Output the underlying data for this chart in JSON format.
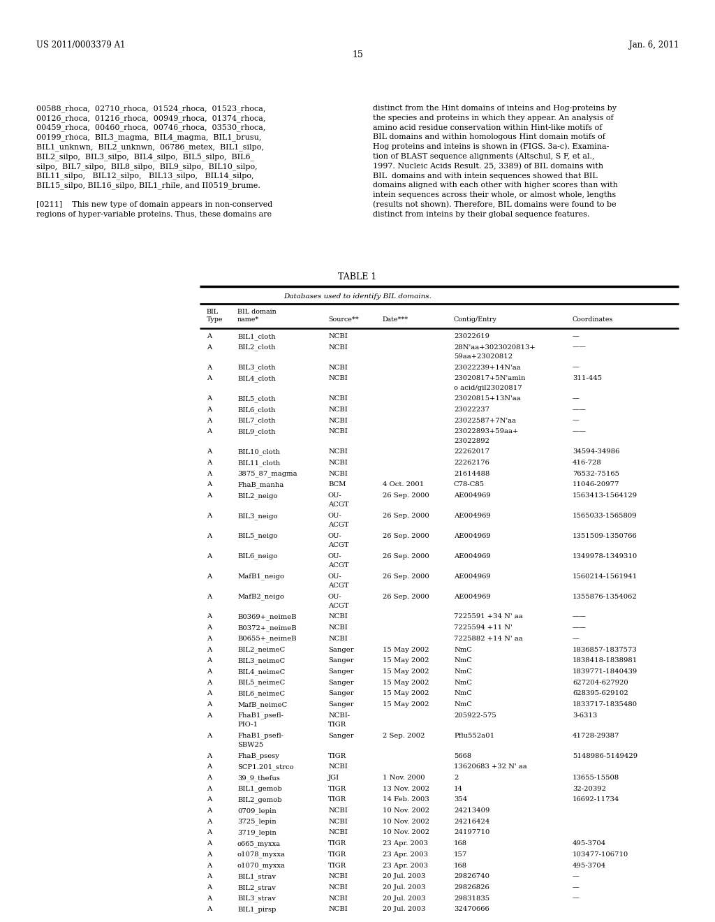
{
  "page_number": "15",
  "patent_number": "US 2011/0003379 A1",
  "patent_date": "Jan. 6, 2011",
  "table_title": "TABLE 1",
  "table_subtitle": "Databases used to identify BIL domains.",
  "bg_color": "#ffffff",
  "text_color": "#000000",
  "left_lines": [
    "00588_rhoca,  02710_rhoca,  01524_rhoca,  01523_rhoca,",
    "00126_rhoca,  01216_rhoca,  00949_rhoca,  01374_rhoca,",
    "00459_rhoca,  00460_rhoca,  00746_rhoca,  03530_rhoca,",
    "00199_rhoca,  BIL3_magma,  BIL4_magma,  BIL1_brusu,",
    "BIL1_unknwn,  BIL2_unknwn,  06786_metex,  BIL1_silpo,",
    "BIL2_silpo,  BIL3_silpo,  BIL4_silpo,  BIL5_silpo,  BIL6_",
    "silpo,  BIL7_silpo,  BIL8_silpo,  BIL9_silpo,  BIL10_silpo,",
    "BIL11_silpo,   BIL12_silpo,   BIL13_silpo,   BIL14_silpo,",
    "BIL15_silpo, BIL16_silpo, BIL1_rhile, and II0519_brume.",
    "",
    "[0211]    This new type of domain appears in non-conserved",
    "regions of hyper-variable proteins. Thus, these domains are"
  ],
  "right_lines": [
    "distinct from the Hint domains of inteins and Hog-proteins by",
    "the species and proteins in which they appear. An analysis of",
    "amino acid residue conservation within Hint-like motifs of",
    "BIL domains and within homologous Hint domain motifs of",
    "Hog proteins and inteins is shown in (FIGS. 3a-c). Examina-",
    "tion of BLAST sequence alignments (Altschul, S F, et al.,",
    "1997. Nucleic Acids Result. 25, 3389) of BIL domains with",
    "BIL  domains and with intein sequences showed that BIL",
    "domains aligned with each other with higher scores than with",
    "intein sequences across their whole, or almost whole, lengths",
    "(results not shown). Therefore, BIL domains were found to be",
    "distinct from inteins by their global sequence features."
  ],
  "rows": [
    {
      "type": "A",
      "name": "BIL1_cloth",
      "source": "NCBI",
      "date": "",
      "contig": "23022619",
      "coords": "—",
      "name_lines": 1,
      "source_lines": 1,
      "contig_lines": 1
    },
    {
      "type": "A",
      "name": "BIL2_cloth",
      "source": "NCBI",
      "date": "",
      "contig": "28N'aa+3023020813+",
      "contig2": "59aa+23020812",
      "coords": "——",
      "name_lines": 1,
      "source_lines": 1,
      "contig_lines": 2
    },
    {
      "type": "A",
      "name": "BIL3_cloth",
      "source": "NCBI",
      "date": "",
      "contig": "23022239+14N'aa",
      "coords": "—",
      "name_lines": 1,
      "source_lines": 1,
      "contig_lines": 1
    },
    {
      "type": "A",
      "name": "BIL4_cloth",
      "source": "NCBI",
      "date": "",
      "contig": "23020817+5N'amin",
      "contig2": "o acid/gil23020817",
      "coords": "311-445",
      "name_lines": 1,
      "source_lines": 1,
      "contig_lines": 2
    },
    {
      "type": "A",
      "name": "BIL5_cloth",
      "source": "NCBI",
      "date": "",
      "contig": "23020815+13N'aa",
      "coords": "—",
      "name_lines": 1,
      "source_lines": 1,
      "contig_lines": 1
    },
    {
      "type": "A",
      "name": "BIL6_cloth",
      "source": "NCBI",
      "date": "",
      "contig": "23022237",
      "coords": "——",
      "name_lines": 1,
      "source_lines": 1,
      "contig_lines": 1
    },
    {
      "type": "A",
      "name": "BIL7_cloth",
      "source": "NCBI",
      "date": "",
      "contig": "23022587+7N'aa",
      "coords": "—",
      "name_lines": 1,
      "source_lines": 1,
      "contig_lines": 1
    },
    {
      "type": "A",
      "name": "BIL9_cloth",
      "source": "NCBI",
      "date": "",
      "contig": "23022893+59aa+",
      "contig2": "23022892",
      "coords": "——",
      "name_lines": 1,
      "source_lines": 1,
      "contig_lines": 2
    },
    {
      "type": "A",
      "name": "BIL10_cloth",
      "source": "NCBI",
      "date": "",
      "contig": "22262017",
      "coords": "34594-34986",
      "name_lines": 1,
      "source_lines": 1,
      "contig_lines": 1
    },
    {
      "type": "A",
      "name": "BIL11_cloth",
      "source": "NCBI",
      "date": "",
      "contig": "22262176",
      "coords": "416-728",
      "name_lines": 1,
      "source_lines": 1,
      "contig_lines": 1
    },
    {
      "type": "A",
      "name": "3875_87_magma",
      "source": "NCBI",
      "date": "",
      "contig": "21614488",
      "coords": "76532-75165",
      "name_lines": 1,
      "source_lines": 1,
      "contig_lines": 1
    },
    {
      "type": "A",
      "name": "FhaB_manha",
      "source": "BCM",
      "date": "4 Oct. 2001",
      "contig": "C78-C85",
      "coords": "11046-20977",
      "name_lines": 1,
      "source_lines": 1,
      "contig_lines": 1
    },
    {
      "type": "A",
      "name": "BIL2_neigo",
      "source": "OU-",
      "source2": "ACGT",
      "date": "26 Sep. 2000",
      "contig": "AE004969",
      "coords": "1563413-1564129",
      "name_lines": 1,
      "source_lines": 2,
      "contig_lines": 1
    },
    {
      "type": "A",
      "name": "BIL3_neigo",
      "source": "OU-",
      "source2": "ACGT",
      "date": "26 Sep. 2000",
      "contig": "AE004969",
      "coords": "1565033-1565809",
      "name_lines": 1,
      "source_lines": 2,
      "contig_lines": 1
    },
    {
      "type": "A",
      "name": "BIL5_neigo",
      "source": "OU-",
      "source2": "ACGT",
      "date": "26 Sep. 2000",
      "contig": "AE004969",
      "coords": "1351509-1350766",
      "name_lines": 1,
      "source_lines": 2,
      "contig_lines": 1
    },
    {
      "type": "A",
      "name": "BIL6_neigo",
      "source": "OU-",
      "source2": "ACGT",
      "date": "26 Sep. 2000",
      "contig": "AE004969",
      "coords": "1349978-1349310",
      "name_lines": 1,
      "source_lines": 2,
      "contig_lines": 1
    },
    {
      "type": "A",
      "name": "MafB1_neigo",
      "source": "OU-",
      "source2": "ACGT",
      "date": "26 Sep. 2000",
      "contig": "AE004969",
      "coords": "1560214-1561941",
      "name_lines": 1,
      "source_lines": 2,
      "contig_lines": 1
    },
    {
      "type": "A",
      "name": "MafB2_neigo",
      "source": "OU-",
      "source2": "ACGT",
      "date": "26 Sep. 2000",
      "contig": "AE004969",
      "coords": "1355876-1354062",
      "name_lines": 1,
      "source_lines": 2,
      "contig_lines": 1
    },
    {
      "type": "A",
      "name": "B0369+_neimeB",
      "source": "NCBI",
      "date": "",
      "contig": "7225591 +34 N' aa",
      "coords": "——",
      "name_lines": 1,
      "source_lines": 1,
      "contig_lines": 1
    },
    {
      "type": "A",
      "name": "B0372+_neimeB",
      "source": "NCBI",
      "date": "",
      "contig": "7225594 +11 N'",
      "coords": "——",
      "name_lines": 1,
      "source_lines": 1,
      "contig_lines": 1
    },
    {
      "type": "A",
      "name": "B0655+_neimeB",
      "source": "NCBI",
      "date": "",
      "contig": "7225882 +14 N' aa",
      "coords": "—",
      "name_lines": 1,
      "source_lines": 1,
      "contig_lines": 1
    },
    {
      "type": "A",
      "name": "BIL2_neimeC",
      "source": "Sanger",
      "date": "15 May 2002",
      "contig": "NmC",
      "coords": "1836857-1837573",
      "name_lines": 1,
      "source_lines": 1,
      "contig_lines": 1
    },
    {
      "type": "A",
      "name": "BIL3_neimeC",
      "source": "Sanger",
      "date": "15 May 2002",
      "contig": "NmC",
      "coords": "1838418-1838981",
      "name_lines": 1,
      "source_lines": 1,
      "contig_lines": 1
    },
    {
      "type": "A",
      "name": "BIL4_neimeC",
      "source": "Sanger",
      "date": "15 May 2002",
      "contig": "NmC",
      "coords": "1839771-1840439",
      "name_lines": 1,
      "source_lines": 1,
      "contig_lines": 1
    },
    {
      "type": "A",
      "name": "BIL5_neimeC",
      "source": "Sanger",
      "date": "15 May 2002",
      "contig": "NmC",
      "coords": "627204-627920",
      "name_lines": 1,
      "source_lines": 1,
      "contig_lines": 1
    },
    {
      "type": "A",
      "name": "BIL6_neimeC",
      "source": "Sanger",
      "date": "15 May 2002",
      "contig": "NmC",
      "coords": "628395-629102",
      "name_lines": 1,
      "source_lines": 1,
      "contig_lines": 1
    },
    {
      "type": "A",
      "name": "MafB_neimeC",
      "source": "Sanger",
      "date": "15 May 2002",
      "contig": "NmC",
      "coords": "1833717-1835480",
      "name_lines": 1,
      "source_lines": 1,
      "contig_lines": 1
    },
    {
      "type": "A",
      "name": "FhaB1_psefl-",
      "name2": "PIO-1",
      "source": "NCBI-",
      "source2": "TIGR",
      "date": "",
      "contig": "205922-575",
      "coords": "3-6313",
      "name_lines": 2,
      "source_lines": 2,
      "contig_lines": 1
    },
    {
      "type": "A",
      "name": "FhaB1_psefl-",
      "name2": "SBW25",
      "source": "Sanger",
      "date": "2 Sep. 2002",
      "contig": "Pflu552a01",
      "coords": "41728-29387",
      "name_lines": 2,
      "source_lines": 1,
      "contig_lines": 1
    },
    {
      "type": "A",
      "name": "FhaB_psesy",
      "source": "TIGR",
      "date": "",
      "contig": "5668",
      "coords": "5148986-5149429",
      "name_lines": 1,
      "source_lines": 1,
      "contig_lines": 1
    },
    {
      "type": "A",
      "name": "SCP1.201_strco",
      "source": "NCBI",
      "date": "",
      "contig": "13620683 +32 N' aa",
      "coords": "",
      "name_lines": 1,
      "source_lines": 1,
      "contig_lines": 1
    },
    {
      "type": "A",
      "name": "39_9_thefus",
      "source": "JGI",
      "date": "1 Nov. 2000",
      "contig": "2",
      "coords": "13655-15508",
      "name_lines": 1,
      "source_lines": 1,
      "contig_lines": 1
    },
    {
      "type": "A",
      "name": "BIL1_gemob",
      "source": "TIGR",
      "date": "13 Nov. 2002",
      "contig": "14",
      "coords": "32-20392",
      "name_lines": 1,
      "source_lines": 1,
      "contig_lines": 1
    },
    {
      "type": "A",
      "name": "BIL2_gemob",
      "source": "TIGR",
      "date": "14 Feb. 2003",
      "contig": "354",
      "coords": "16692-11734",
      "name_lines": 1,
      "source_lines": 1,
      "contig_lines": 1
    },
    {
      "type": "A",
      "name": "0709_lepin",
      "source": "NCBI",
      "date": "10 Nov. 2002",
      "contig": "24213409",
      "coords": "",
      "name_lines": 1,
      "source_lines": 1,
      "contig_lines": 1
    },
    {
      "type": "A",
      "name": "3725_lepin",
      "source": "NCBI",
      "date": "10 Nov. 2002",
      "contig": "24216424",
      "coords": "",
      "name_lines": 1,
      "source_lines": 1,
      "contig_lines": 1
    },
    {
      "type": "A",
      "name": "3719_lepin",
      "source": "NCBI",
      "date": "10 Nov. 2002",
      "contig": "24197710",
      "coords": "",
      "name_lines": 1,
      "source_lines": 1,
      "contig_lines": 1
    },
    {
      "type": "A",
      "name": "o665_myxxa",
      "source": "TIGR",
      "date": "23 Apr. 2003",
      "contig": "168",
      "coords": "495-3704",
      "name_lines": 1,
      "source_lines": 1,
      "contig_lines": 1
    },
    {
      "type": "A",
      "name": "o1078_myxxa",
      "source": "TIGR",
      "date": "23 Apr. 2003",
      "contig": "157",
      "coords": "103477-106710",
      "name_lines": 1,
      "source_lines": 1,
      "contig_lines": 1
    },
    {
      "type": "A",
      "name": "o1070_myxxa",
      "source": "TIGR",
      "date": "23 Apr. 2003",
      "contig": "168",
      "coords": "495-3704",
      "name_lines": 1,
      "source_lines": 1,
      "contig_lines": 1
    },
    {
      "type": "A",
      "name": "BIL1_strav",
      "source": "NCBI",
      "date": "20 Jul. 2003",
      "contig": "29826740",
      "coords": "—",
      "name_lines": 1,
      "source_lines": 1,
      "contig_lines": 1
    },
    {
      "type": "A",
      "name": "BIL2_strav",
      "source": "NCBI",
      "date": "20 Jul. 2003",
      "contig": "29826826",
      "coords": "—",
      "name_lines": 1,
      "source_lines": 1,
      "contig_lines": 1
    },
    {
      "type": "A",
      "name": "BIL3_strav",
      "source": "NCBI",
      "date": "20 Jul. 2003",
      "contig": "29831835",
      "coords": "—",
      "name_lines": 1,
      "source_lines": 1,
      "contig_lines": 1
    },
    {
      "type": "A",
      "name": "BIL1_pirsp",
      "source": "NCBI",
      "date": "20 Jul. 2003",
      "contig": "32470666",
      "coords": "",
      "name_lines": 1,
      "source_lines": 1,
      "contig_lines": 1
    }
  ]
}
